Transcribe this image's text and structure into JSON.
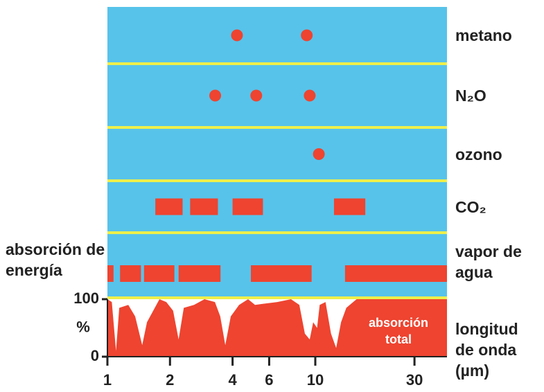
{
  "chart_data": {
    "type": "band",
    "series": [
      {
        "name": "metano",
        "color": "#ee4430",
        "points": [
          4.2,
          9.1
        ]
      },
      {
        "name": "N₂O",
        "color": "#ee4430",
        "points": [
          3.3,
          5.2,
          9.4
        ]
      },
      {
        "name": "ozono",
        "color": "#ee4430",
        "points": [
          10.4
        ]
      },
      {
        "name": "CO₂",
        "color": "#ee4430",
        "bands": [
          [
            1.7,
            2.3
          ],
          [
            2.5,
            3.4
          ],
          [
            4.0,
            5.6
          ],
          [
            12.3,
            17.4
          ]
        ]
      },
      {
        "name": "vapor de agua",
        "color": "#ee4430",
        "bands": [
          [
            1.0,
            1.07
          ],
          [
            1.15,
            1.45
          ],
          [
            1.5,
            2.1
          ],
          [
            2.2,
            3.5
          ],
          [
            4.9,
            9.6
          ],
          [
            13.9,
            43
          ]
        ]
      }
    ],
    "total": {
      "label": "absorción total",
      "color": "#ee4430",
      "x": [
        1.0,
        1.05,
        1.1,
        1.14,
        1.26,
        1.36,
        1.47,
        1.55,
        1.78,
        1.92,
        2.07,
        2.2,
        2.33,
        2.61,
        2.93,
        3.29,
        3.49,
        3.69,
        3.92,
        4.3,
        4.75,
        5.13,
        5.62,
        6.56,
        7.64,
        8.38,
        8.91,
        9.4,
        9.77,
        10.2,
        10.5,
        11.2,
        11.9,
        12.6,
        13.3,
        14.1,
        15.8,
        43
      ],
      "values": [
        100,
        95,
        10,
        85,
        90,
        70,
        20,
        60,
        100,
        95,
        80,
        30,
        85,
        90,
        100,
        95,
        70,
        20,
        70,
        90,
        100,
        90,
        92,
        95,
        100,
        90,
        40,
        30,
        60,
        50,
        90,
        95,
        40,
        15,
        60,
        85,
        100,
        100
      ]
    },
    "ylabel": "absorción de energía",
    "yunit": "%",
    "xlabel": "longitud de onda (µm)",
    "xscale": "log",
    "xlim": [
      1,
      43
    ],
    "xticks": [
      1,
      2,
      4,
      6,
      10,
      30
    ],
    "ylim": [
      0,
      100
    ],
    "yticks": [
      0,
      100
    ],
    "background": "#57c3ea",
    "separator_color": "#eef04a"
  }
}
